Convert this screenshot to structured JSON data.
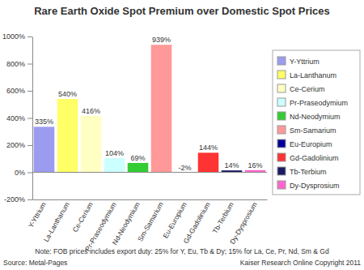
{
  "chart_data": {
    "type": "bar",
    "title": "Rare Earth Oxide Spot Premium over Domestic Spot Prices",
    "categories": [
      "Y-Yttrium",
      "La-Lanthanum",
      "Ce-Cerium",
      "Pr-Praseodymium",
      "Nd-Neodymium",
      "Sm-Samarium",
      "Eu-Europium",
      "Gd-Gadolinium",
      "Tb-Terbium",
      "Dy-Dysprosium"
    ],
    "values": [
      335,
      540,
      416,
      104,
      69,
      939,
      -2,
      144,
      14,
      16
    ],
    "value_labels": [
      "335%",
      "540%",
      "416%",
      "104%",
      "69%",
      "939%",
      "-2%",
      "144%",
      "14%",
      "16%"
    ],
    "colors": [
      "#9b9bf0",
      "#ffff66",
      "#ffffc4",
      "#ccffff",
      "#33cc33",
      "#ff9999",
      "#000099",
      "#ff3333",
      "#1a1a66",
      "#ff66cc"
    ],
    "ylim": [
      -200,
      1000
    ],
    "yticks": [
      {
        "value": -200,
        "label": "-200%"
      },
      {
        "value": 0,
        "label": "0%"
      },
      {
        "value": 200,
        "label": "200%"
      },
      {
        "value": 400,
        "label": "400%"
      },
      {
        "value": 600,
        "label": "600%"
      },
      {
        "value": 800,
        "label": "800%"
      },
      {
        "value": 1000,
        "label": "1000%"
      }
    ],
    "grid": false,
    "legend": "right",
    "data_labels": true,
    "notes": [
      "Note: FOB prices includes export duty: 25% for Y, Eu, Tb & Dy; 15% for La, Ce, Pr, Nd, Sm & Gd",
      "Source: Metal-Pages",
      "Kaiser Research Online Copyright 2011"
    ]
  }
}
